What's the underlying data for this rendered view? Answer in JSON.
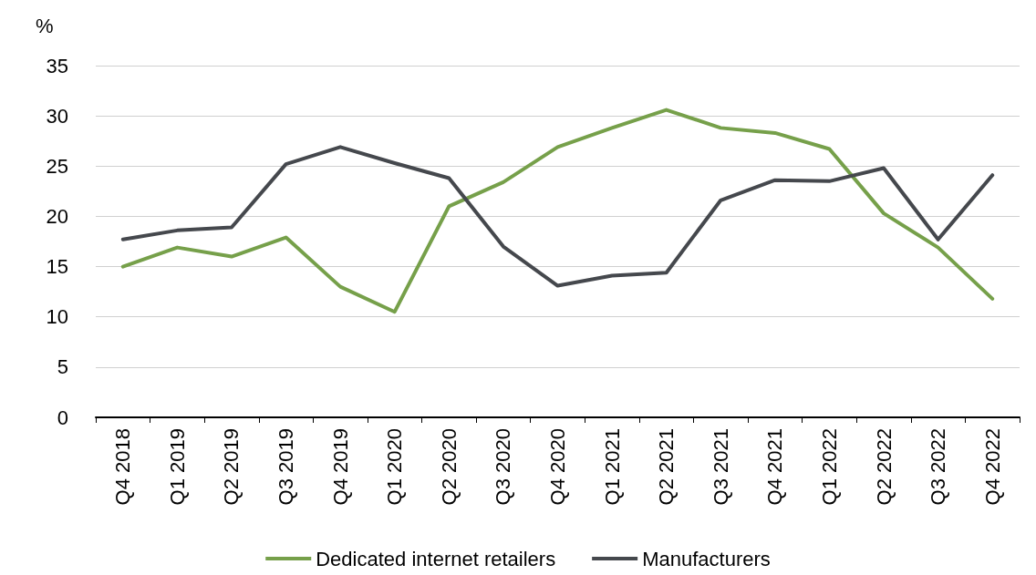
{
  "chart_data": {
    "type": "line",
    "ylabel": "%",
    "categories": [
      "Q4 2018",
      "Q1 2019",
      "Q2 2019",
      "Q3 2019",
      "Q4 2019",
      "Q1 2020",
      "Q2 2020",
      "Q3 2020",
      "Q4 2020",
      "Q1 2021",
      "Q2 2021",
      "Q3 2021",
      "Q4 2021",
      "Q1 2022",
      "Q2 2022",
      "Q3 2022",
      "Q4 2022"
    ],
    "series": [
      {
        "name": "Dedicated internet retailers",
        "color": "#76a04a",
        "values": [
          15.0,
          16.9,
          16.0,
          17.9,
          13.0,
          10.5,
          21.0,
          23.4,
          26.9,
          28.8,
          30.6,
          28.8,
          28.3,
          26.7,
          20.3,
          16.9,
          11.8
        ]
      },
      {
        "name": "Manufacturers",
        "color": "#45484d",
        "values": [
          17.7,
          18.6,
          18.9,
          25.2,
          26.9,
          25.3,
          23.8,
          17.0,
          13.1,
          14.1,
          14.4,
          21.6,
          23.6,
          23.5,
          24.8,
          17.7,
          24.1
        ]
      }
    ],
    "ylim": [
      0,
      35
    ],
    "yticks": [
      0,
      5,
      10,
      15,
      20,
      25,
      30,
      35
    ],
    "grid": "y",
    "legend": "bottom",
    "marker": "none",
    "line_style": "solid"
  }
}
